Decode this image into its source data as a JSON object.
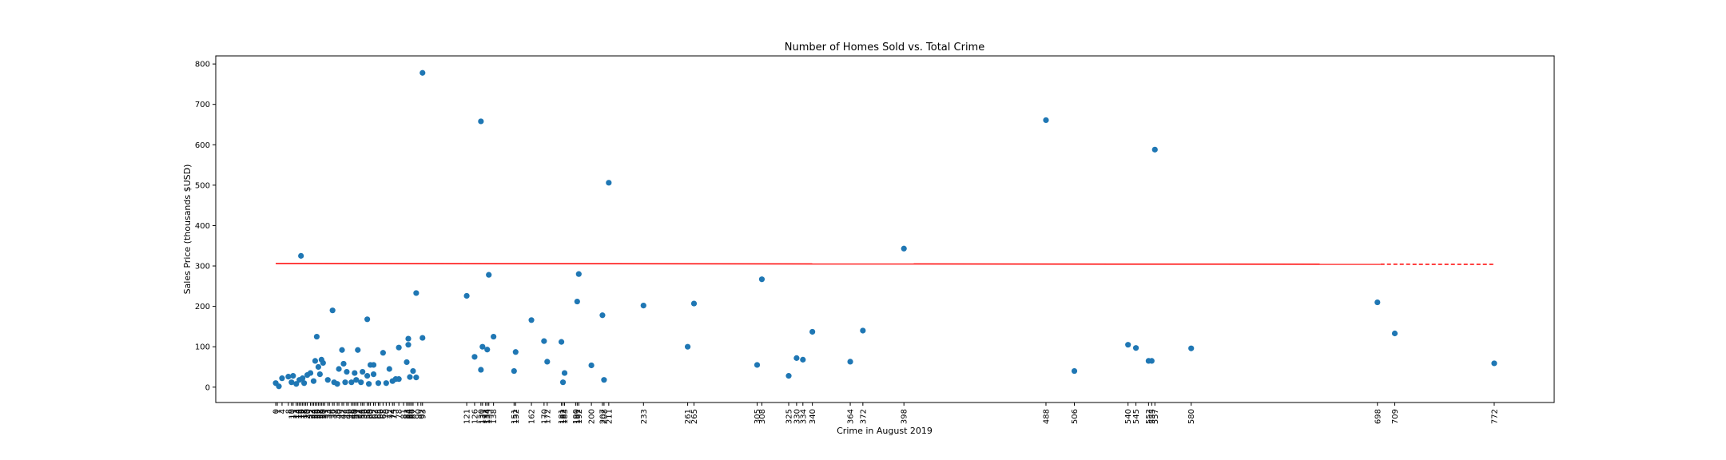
{
  "chart_data": {
    "type": "scatter",
    "title": "Number of Homes Sold vs. Total Crime",
    "xlabel": "Crime in August 2019",
    "ylabel": "Sales Price (thousands $USD)",
    "xlim": [
      -38,
      810
    ],
    "ylim": [
      -38,
      820
    ],
    "yticks": [
      0,
      100,
      200,
      300,
      400,
      500,
      600,
      700,
      800
    ],
    "xticks": [
      0,
      1,
      4,
      8,
      10,
      11,
      13,
      14,
      15,
      16,
      17,
      18,
      19,
      20,
      22,
      23,
      24,
      25,
      26,
      27,
      28,
      29,
      30,
      31,
      33,
      34,
      36,
      37,
      39,
      40,
      42,
      43,
      45,
      46,
      48,
      49,
      50,
      51,
      52,
      54,
      55,
      56,
      58,
      59,
      60,
      62,
      63,
      65,
      66,
      68,
      70,
      72,
      74,
      75,
      78,
      81,
      83,
      84,
      85,
      86,
      87,
      90,
      92,
      93,
      121,
      126,
      130,
      131,
      133,
      134,
      135,
      138,
      151,
      152,
      162,
      170,
      172,
      181,
      182,
      183,
      190,
      191,
      192,
      200,
      207,
      208,
      211,
      233,
      261,
      265,
      305,
      308,
      325,
      330,
      334,
      340,
      364,
      372,
      398,
      488,
      506,
      540,
      545,
      553,
      555,
      557,
      580,
      698,
      709,
      772
    ],
    "points": [
      {
        "x": 0,
        "y": 10
      },
      {
        "x": 2,
        "y": 2
      },
      {
        "x": 4,
        "y": 22
      },
      {
        "x": 8,
        "y": 26
      },
      {
        "x": 10,
        "y": 12
      },
      {
        "x": 11,
        "y": 28
      },
      {
        "x": 13,
        "y": 8
      },
      {
        "x": 15,
        "y": 18
      },
      {
        "x": 16,
        "y": 325
      },
      {
        "x": 17,
        "y": 22
      },
      {
        "x": 18,
        "y": 10
      },
      {
        "x": 20,
        "y": 30
      },
      {
        "x": 22,
        "y": 35
      },
      {
        "x": 24,
        "y": 15
      },
      {
        "x": 25,
        "y": 65
      },
      {
        "x": 26,
        "y": 125
      },
      {
        "x": 27,
        "y": 50
      },
      {
        "x": 28,
        "y": 32
      },
      {
        "x": 29,
        "y": 68
      },
      {
        "x": 30,
        "y": 60
      },
      {
        "x": 33,
        "y": 18
      },
      {
        "x": 36,
        "y": 190
      },
      {
        "x": 37,
        "y": 12
      },
      {
        "x": 39,
        "y": 8
      },
      {
        "x": 40,
        "y": 45
      },
      {
        "x": 42,
        "y": 92
      },
      {
        "x": 43,
        "y": 58
      },
      {
        "x": 44,
        "y": 12
      },
      {
        "x": 45,
        "y": 38
      },
      {
        "x": 48,
        "y": 12
      },
      {
        "x": 50,
        "y": 35
      },
      {
        "x": 51,
        "y": 18
      },
      {
        "x": 52,
        "y": 92
      },
      {
        "x": 54,
        "y": 12
      },
      {
        "x": 55,
        "y": 38
      },
      {
        "x": 58,
        "y": 168
      },
      {
        "x": 58,
        "y": 28
      },
      {
        "x": 59,
        "y": 8
      },
      {
        "x": 60,
        "y": 55
      },
      {
        "x": 62,
        "y": 55
      },
      {
        "x": 62,
        "y": 32
      },
      {
        "x": 65,
        "y": 10
      },
      {
        "x": 68,
        "y": 85
      },
      {
        "x": 70,
        "y": 10
      },
      {
        "x": 72,
        "y": 45
      },
      {
        "x": 74,
        "y": 15
      },
      {
        "x": 76,
        "y": 20
      },
      {
        "x": 78,
        "y": 98
      },
      {
        "x": 78,
        "y": 20
      },
      {
        "x": 83,
        "y": 62
      },
      {
        "x": 84,
        "y": 105
      },
      {
        "x": 84,
        "y": 120
      },
      {
        "x": 85,
        "y": 25
      },
      {
        "x": 87,
        "y": 40
      },
      {
        "x": 89,
        "y": 233
      },
      {
        "x": 89,
        "y": 24
      },
      {
        "x": 93,
        "y": 778
      },
      {
        "x": 93,
        "y": 122
      },
      {
        "x": 121,
        "y": 226
      },
      {
        "x": 126,
        "y": 75
      },
      {
        "x": 130,
        "y": 43
      },
      {
        "x": 130,
        "y": 658
      },
      {
        "x": 131,
        "y": 100
      },
      {
        "x": 134,
        "y": 93
      },
      {
        "x": 135,
        "y": 278
      },
      {
        "x": 138,
        "y": 125
      },
      {
        "x": 151,
        "y": 40
      },
      {
        "x": 152,
        "y": 87
      },
      {
        "x": 162,
        "y": 166
      },
      {
        "x": 170,
        "y": 114
      },
      {
        "x": 172,
        "y": 63
      },
      {
        "x": 181,
        "y": 112
      },
      {
        "x": 182,
        "y": 12
      },
      {
        "x": 183,
        "y": 35
      },
      {
        "x": 191,
        "y": 212
      },
      {
        "x": 192,
        "y": 280
      },
      {
        "x": 200,
        "y": 54
      },
      {
        "x": 207,
        "y": 178
      },
      {
        "x": 208,
        "y": 18
      },
      {
        "x": 211,
        "y": 506
      },
      {
        "x": 233,
        "y": 202
      },
      {
        "x": 261,
        "y": 100
      },
      {
        "x": 265,
        "y": 207
      },
      {
        "x": 305,
        "y": 55
      },
      {
        "x": 308,
        "y": 267
      },
      {
        "x": 325,
        "y": 28
      },
      {
        "x": 330,
        "y": 72
      },
      {
        "x": 334,
        "y": 68
      },
      {
        "x": 340,
        "y": 137
      },
      {
        "x": 364,
        "y": 63
      },
      {
        "x": 372,
        "y": 140
      },
      {
        "x": 398,
        "y": 343
      },
      {
        "x": 488,
        "y": 661
      },
      {
        "x": 506,
        "y": 40
      },
      {
        "x": 540,
        "y": 105
      },
      {
        "x": 545,
        "y": 97
      },
      {
        "x": 553,
        "y": 65
      },
      {
        "x": 555,
        "y": 65
      },
      {
        "x": 557,
        "y": 588
      },
      {
        "x": 580,
        "y": 96
      },
      {
        "x": 698,
        "y": 210
      },
      {
        "x": 709,
        "y": 133
      },
      {
        "x": 772,
        "y": 59
      }
    ],
    "trend_line": {
      "x": [
        0,
        772
      ],
      "y": [
        306,
        304
      ],
      "color": "#ff0000"
    },
    "marker_color": "#1f77b4",
    "grid": false,
    "legend": false
  }
}
